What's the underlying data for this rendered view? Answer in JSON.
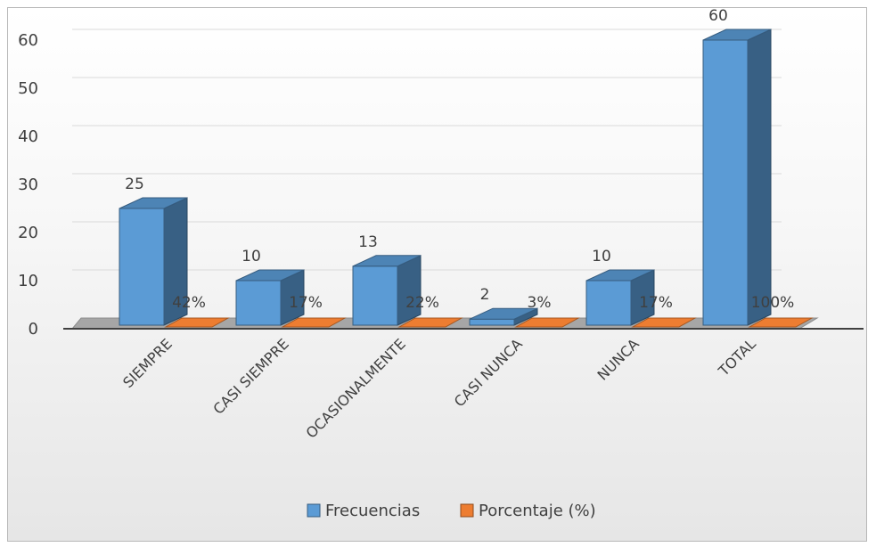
{
  "chart_data": {
    "type": "bar",
    "subtype": "3d-clustered-column",
    "categories": [
      "SIEMPRE",
      "CASI SIEMPRE",
      "OCASIONALMENTE",
      "CASI NUNCA",
      "NUNCA",
      "TOTAL"
    ],
    "series": [
      {
        "name": "Frecuencias",
        "values": [
          25,
          10,
          13,
          2,
          10,
          60
        ],
        "labels": [
          "25",
          "10",
          "13",
          "2",
          "10",
          "60"
        ],
        "color": "#5B9BD5"
      },
      {
        "name": "Porcentaje (%)",
        "values": [
          0.42,
          0.17,
          0.22,
          0.03,
          0.17,
          1.0
        ],
        "labels": [
          "42%",
          "17%",
          "22%",
          "3%",
          "17%",
          "100%"
        ],
        "color": "#ED7D31"
      }
    ],
    "ylim": [
      0,
      60
    ],
    "yticks": [
      "0",
      "10",
      "20",
      "30",
      "40",
      "50",
      "60"
    ],
    "grid": true,
    "legend": "bottom"
  }
}
